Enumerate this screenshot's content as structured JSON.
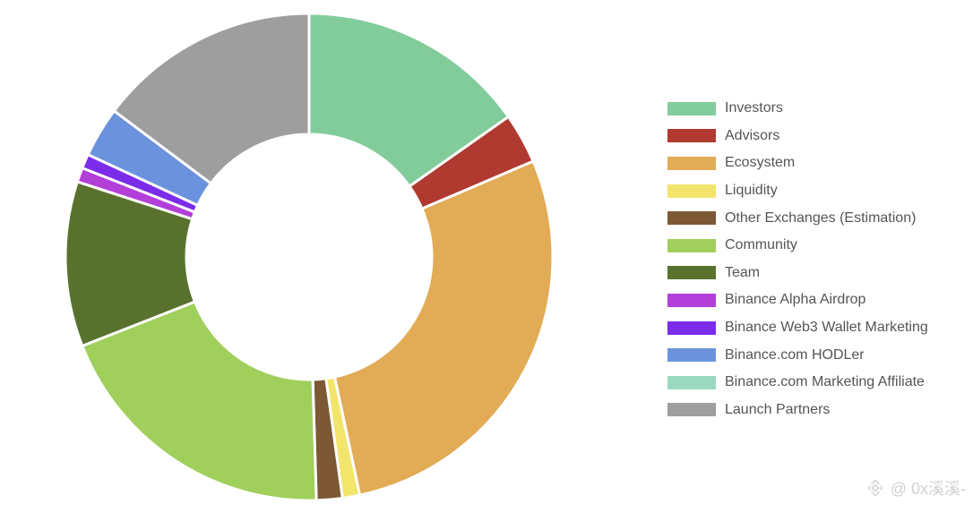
{
  "chart_data": {
    "type": "pie",
    "title": "",
    "legend": "right",
    "slices": [
      {
        "label": "Investors",
        "value": 16.0,
        "color": "#82cc9c"
      },
      {
        "label": "Advisors",
        "value": 3.5,
        "color": "#b03a30"
      },
      {
        "label": "Ecosystem",
        "value": 29.5,
        "color": "#e2ab55"
      },
      {
        "label": "Liquidity",
        "value": 1.2,
        "color": "#f3e56c"
      },
      {
        "label": "Other Exchanges (Estimation)",
        "value": 1.8,
        "color": "#7d5835"
      },
      {
        "label": "Community",
        "value": 20.5,
        "color": "#a1cf5c"
      },
      {
        "label": "Team",
        "value": 11.5,
        "color": "#58722e"
      },
      {
        "label": "Binance Alpha Airdrop",
        "value": 1.0,
        "color": "#b23fd8"
      },
      {
        "label": "Binance Web3 Wallet Marketing",
        "value": 1.0,
        "color": "#7b2ce8"
      },
      {
        "label": "Binance.com HODLer",
        "value": 3.5,
        "color": "#6b93dd"
      },
      {
        "label": "Binance.com Marketing Affiliate",
        "value": 0,
        "color": "#9ad9c0"
      },
      {
        "label": "Launch Partners",
        "value": 15.5,
        "color": "#9e9e9e"
      }
    ]
  },
  "watermark": {
    "text": "@ 0x溪溪-",
    "logo_icon": "binance-logo-icon"
  }
}
